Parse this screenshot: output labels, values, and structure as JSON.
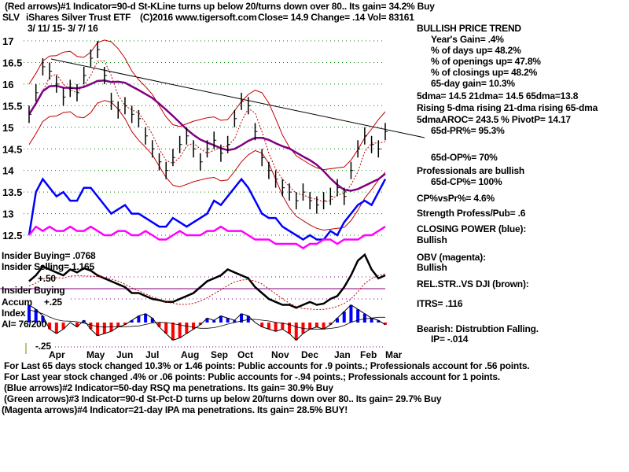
{
  "header": {
    "line1": "(Red arrows)#1 Indicator=90-d St-KLine turns up below 20/turns down over 80.. Its gain= 34.2% Buy",
    "symbol": "SLV",
    "name": "iShares Silver Trust ETF",
    "copyright": "(C)2016 www.tigersoft.com",
    "quote": "Close=  14.9  Change= .14 Vol= 83161",
    "date_range": "3/ 11/ 15- 3/ 7/ 16"
  },
  "stats": {
    "trend": "BULLISH PRICE TREND",
    "year_gain": "Year's Gain= .4%",
    "days_up": "% of days up= 48.2%",
    "openings_up": "% of openings up= 47.8%",
    "closings_up": "% of closings up= 48.2%",
    "gain_65": "65-day gain= 10.3%",
    "dmas": "5dma= 14.5 21dma= 14.5 65dma=13.8",
    "rising": "Rising 5-dma rising 21-dma rising 65-dma",
    "aroc": "5dmaAROC= 243.5 %  PivotP= 14.17",
    "pr": "65d-PR%= 95.3%",
    "op": "65d-OP%= 70%",
    "professionals": "Professionals are bullish",
    "cp": "65d-CP%= 100%",
    "cpvspr": "CP%vsPr%=  4.6%",
    "strength": "Strength Profess/Pub= .6",
    "closing_power": "CLOSING POWER (blue):",
    "closing_power_val": "Bullish",
    "obv": "OBV (magenta):",
    "obv_val": "Bullish",
    "relstr": "REL.STR..VS DJI (brown):",
    "itrs": "ITRS= .116",
    "bearish": "Bearish: Distrubtion Falling.",
    "ip": "IP= -.014"
  },
  "lower_panel": {
    "insider_buying_val": "Insider Buying= .0768",
    "insider_selling_val": "Insider Selling= 1.165",
    "insider_buying": "Insider Buying",
    "accum": "Accum",
    "index": "Index",
    "ai": "AI= 76/200",
    "plus50": "+.50",
    "plus25": "+.25",
    "minus25": "-.25"
  },
  "footer": [
    "For Last 65 days stock changed  10.3% or  1.46 points:  Public accounts for  .9 points.;  Professionals account for  .56 points.",
    "For Last year stock changed  .4% or  .06 points:  Public accounts for -.94 points.;  Professionals account for  1 points.",
    "(Blue arrows)#2 Indicator=50-day RSQ ma penetrations. Its gain= 30.9% Buy",
    "(Green arrows)#3 Indicator=90-d St-Pct-D turns up below 20/turns down over 80.. Its gain= 29.7% Buy",
    "(Magenta arrows)#4 Indicator=21-day IPA ma penetrations. Its gain= 28.5% BUY!"
  ],
  "chart_data": {
    "type": "line",
    "title": "SLV iShares Silver Trust ETF",
    "ylim": [
      12.5,
      17
    ],
    "yticks": [
      "17",
      "16.5",
      "16",
      "15.5",
      "15",
      "14.5",
      "14",
      "13.5",
      "13",
      "12.5"
    ],
    "months": [
      "Apr",
      "May",
      "Jun",
      "Jul",
      "Aug",
      "Sep",
      "Oct",
      "Nov",
      "Dec",
      "Jan",
      "Feb",
      "Mar"
    ],
    "colors": {
      "price": "#000000",
      "closing_power": "#0000ff",
      "obv": "#ff00ff",
      "ma65": "#800080",
      "bands": "#c00000",
      "grid": "#008000",
      "ai_pos": "#0000ff",
      "ai_neg": "#ff0000"
    },
    "series": [
      {
        "name": "price_weekly_close",
        "values": [
          15.3,
          15.8,
          16.4,
          16.3,
          16.0,
          15.7,
          15.9,
          15.8,
          16.2,
          16.6,
          16.8,
          16.2,
          15.6,
          15.4,
          15.5,
          15.3,
          15.2,
          14.8,
          14.5,
          14.2,
          14.0,
          14.3,
          14.6,
          14.8,
          14.5,
          14.2,
          14.5,
          14.7,
          14.4,
          14.6,
          15.2,
          15.6,
          15.5,
          14.9,
          14.3,
          14.0,
          13.8,
          13.6,
          13.5,
          13.3,
          13.5,
          13.3,
          13.2,
          13.3,
          13.4,
          13.6,
          13.4,
          14.0,
          14.5,
          14.8,
          14.6,
          14.5,
          14.9
        ]
      },
      {
        "name": "closing_power",
        "values": [
          12.5,
          13.5,
          13.8,
          13.6,
          13.4,
          13.5,
          13.3,
          13.3,
          13.6,
          13.6,
          13.4,
          13.2,
          13.0,
          13.1,
          13.2,
          13.0,
          13.0,
          12.9,
          12.8,
          12.7,
          12.7,
          12.9,
          12.8,
          12.7,
          12.8,
          12.9,
          13.0,
          13.3,
          13.2,
          13.4,
          13.6,
          13.8,
          13.6,
          13.3,
          13.0,
          12.9,
          12.9,
          12.7,
          12.6,
          12.5,
          12.4,
          12.5,
          12.4,
          12.4,
          12.6,
          12.5,
          12.8,
          13.0,
          13.2,
          13.3,
          13.2,
          13.5,
          13.8
        ]
      },
      {
        "name": "obv",
        "values": [
          12.5,
          12.7,
          12.6,
          12.7,
          12.6,
          12.6,
          12.7,
          12.6,
          12.6,
          12.7,
          12.6,
          12.5,
          12.5,
          12.6,
          12.6,
          12.5,
          12.5,
          12.6,
          12.5,
          12.4,
          12.4,
          12.5,
          12.6,
          12.5,
          12.5,
          12.5,
          12.6,
          12.6,
          12.7,
          12.6,
          12.6,
          12.6,
          12.5,
          12.4,
          12.4,
          12.4,
          12.3,
          12.3,
          12.3,
          12.3,
          12.2,
          12.3,
          12.3,
          12.4,
          12.4,
          12.3,
          12.4,
          12.4,
          12.4,
          12.5,
          12.5,
          12.6,
          12.7
        ]
      },
      {
        "name": "insider_line",
        "values": [
          50,
          60,
          75,
          70,
          65,
          60,
          70,
          65,
          72,
          68,
          60,
          55,
          50,
          45,
          40,
          30,
          30,
          25,
          20,
          18,
          15,
          15,
          20,
          25,
          30,
          40,
          50,
          55,
          60,
          70,
          65,
          60,
          55,
          40,
          30,
          20,
          15,
          10,
          10,
          5,
          10,
          15,
          10,
          12,
          20,
          25,
          40,
          60,
          85,
          95,
          70,
          55,
          60
        ]
      },
      {
        "name": "accum_index",
        "values": [
          0.8,
          0.6,
          0.3,
          -0.3,
          -0.5,
          -0.3,
          0,
          -0.2,
          0.1,
          -0.3,
          -0.6,
          -0.5,
          -0.4,
          -0.2,
          -0.1,
          0.1,
          0.3,
          0.4,
          0.2,
          -0.2,
          -0.5,
          -0.8,
          -0.7,
          -0.5,
          -0.3,
          -0.1,
          0.2,
          0.1,
          0.3,
          0.2,
          0.1,
          0.4,
          0.3,
          0,
          -0.2,
          -0.3,
          -0.4,
          -0.3,
          -0.5,
          -0.8,
          -0.5,
          -0.3,
          -0.2,
          -0.3,
          -0.1,
          0.2,
          0.5,
          0.8,
          0.6,
          0.4,
          0.2,
          0.1,
          -0.1
        ]
      }
    ]
  }
}
